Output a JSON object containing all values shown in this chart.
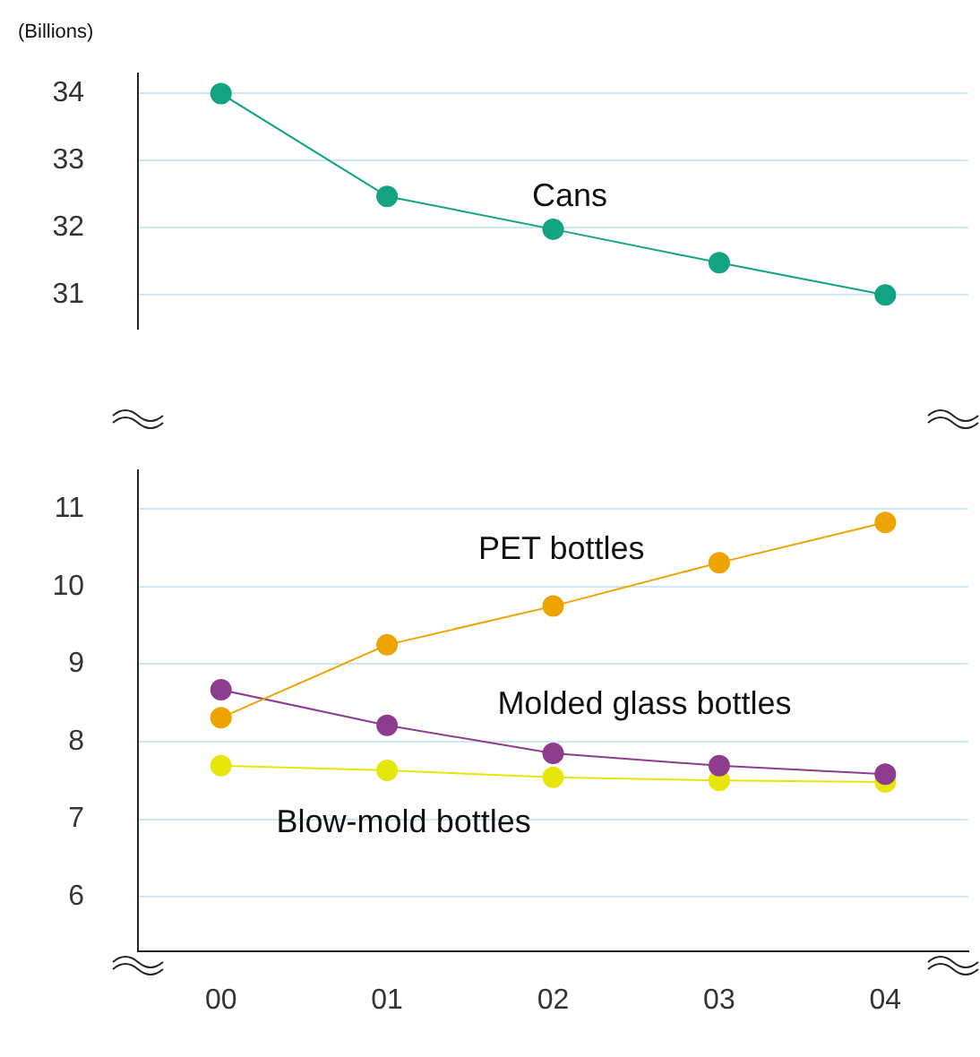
{
  "chart_data": [
    {
      "type": "line",
      "ylabel": "(Billions)",
      "categories": [
        "00",
        "01",
        "02",
        "03",
        "04"
      ],
      "ylim": [
        30.5,
        34.3
      ],
      "yticks": [
        31,
        32,
        33,
        34
      ],
      "grid": "y",
      "legend": false,
      "marker": "circle",
      "tick_labels": "y",
      "series": [
        {
          "name": "Cans",
          "color": "#12a383",
          "values": [
            34.0,
            32.47,
            31.98,
            31.48,
            31.0
          ]
        }
      ]
    },
    {
      "type": "line",
      "categories": [
        "00",
        "01",
        "02",
        "03",
        "04"
      ],
      "ylim": [
        5.3,
        11.5
      ],
      "yticks": [
        6,
        7,
        8,
        9,
        10,
        11
      ],
      "grid": "y",
      "legend": false,
      "marker": "circle",
      "series": [
        {
          "name": "PET bottles",
          "color": "#eda400",
          "values": [
            8.31,
            9.25,
            9.75,
            10.31,
            10.83
          ]
        },
        {
          "name": "Molded glass bottles",
          "color": "#8e3c8e",
          "values": [
            8.67,
            8.21,
            7.85,
            7.69,
            7.58
          ]
        },
        {
          "name": "Blow-mold bottles",
          "color": "#e6e60a",
          "values": [
            7.69,
            7.63,
            7.54,
            7.5,
            7.48
          ]
        }
      ]
    }
  ]
}
